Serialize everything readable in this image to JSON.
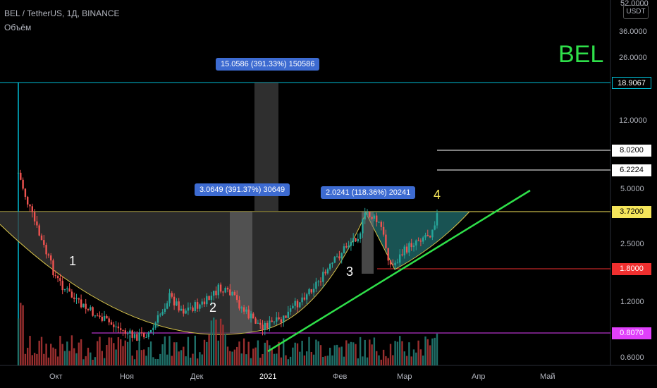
{
  "header": {
    "symbol_line": "BEL / TetherUS, 1Д, BINANCE",
    "volume_label": "Объём"
  },
  "currency_button": "USDT",
  "ticker_badge": "BEL",
  "price_axis": {
    "ticks": [
      "52.0000",
      "36.0000",
      "26.0000",
      "12.0000",
      "5.0000",
      "2.5000",
      "1.2000",
      "0.6000"
    ]
  },
  "price_tags": [
    {
      "label": "18.9067",
      "color": "#00bcd4",
      "bg": "#000000",
      "fg": "#ffffff"
    },
    {
      "label": "8.0200",
      "color": "#ffffff",
      "bg": "#ffffff",
      "fg": "#000000"
    },
    {
      "label": "6.2224",
      "color": "#ffffff",
      "bg": "#ffffff",
      "fg": "#000000"
    },
    {
      "label": "3.7200",
      "color": "#f5e55a",
      "bg": "#f5e55a",
      "fg": "#000000"
    },
    {
      "label": "1.8000",
      "color": "#ef2f2f",
      "bg": "#ef2f2f",
      "fg": "#ffffff"
    },
    {
      "label": "0.8070",
      "color": "#e040fb",
      "bg": "#e040fb",
      "fg": "#ffffff"
    }
  ],
  "time_axis": {
    "ticks": [
      "Окт",
      "Ноя",
      "Дек",
      "2021",
      "Фев",
      "Мар",
      "Апр",
      "Май"
    ]
  },
  "measurements": [
    {
      "label": "15.0586 (391.33%) 150586"
    },
    {
      "label": "3.0649 (391.37%) 30649"
    },
    {
      "label": "2.0241 (118.36%) 20241"
    }
  ],
  "wave_labels": [
    "1",
    "2",
    "3",
    "4"
  ],
  "colors": {
    "up": "#26a69a",
    "down": "#ef5350",
    "trendline": "#2fe04a",
    "resistance": "#f5e55a",
    "support": "#e040fb"
  }
}
